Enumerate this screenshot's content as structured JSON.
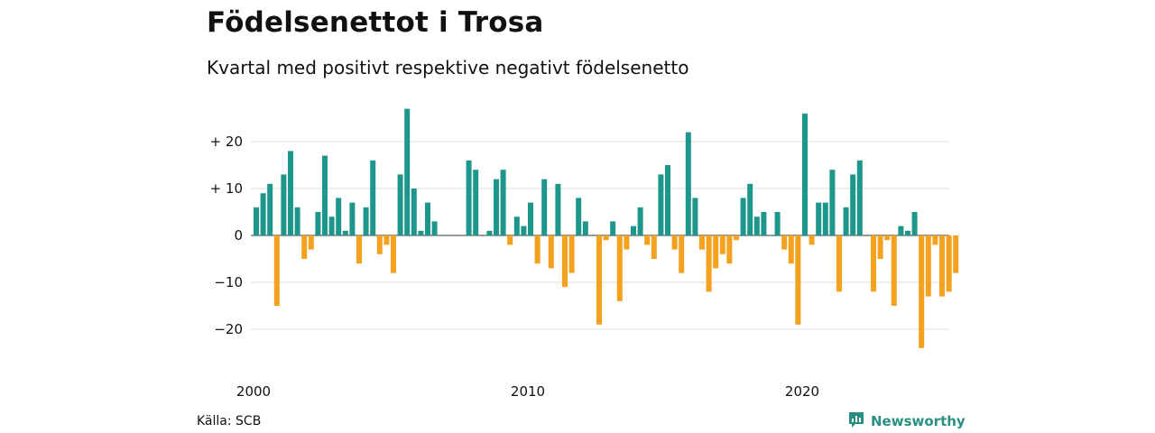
{
  "header": {
    "title": "Födelsenettot i Trosa",
    "subtitle": "Kvartal med positivt respektive negativt födelsenetto"
  },
  "footer": {
    "source": "Källa: SCB",
    "brand": "Newsworthy",
    "brand_icon": "newsworthy-logo-icon"
  },
  "colors": {
    "positive": "#1f968b",
    "negative": "#f4a11d",
    "grid": "#dddddd",
    "baseline": "#333333",
    "brand": "#2a8f83"
  },
  "chart_data": {
    "type": "bar",
    "x_start_year": 2000,
    "x_ticks": [
      2000,
      2010,
      2020
    ],
    "x_tick_labels": [
      "2000",
      "2010",
      "2020"
    ],
    "y_ticks": [
      20,
      10,
      0,
      -10,
      -20
    ],
    "y_tick_labels": [
      "+ 20",
      "+ 10",
      "0",
      "−10",
      "−20"
    ],
    "ylim": [
      -27,
      27
    ],
    "grid": true,
    "xlabel": "",
    "ylabel": "",
    "values": [
      6,
      9,
      11,
      -15,
      13,
      18,
      6,
      -5,
      -3,
      5,
      17,
      4,
      8,
      1,
      7,
      -6,
      6,
      16,
      -4,
      -2,
      -8,
      13,
      27,
      10,
      1,
      7,
      3,
      0,
      0,
      0,
      0,
      16,
      14,
      0,
      1,
      12,
      14,
      -2,
      4,
      2,
      7,
      -6,
      12,
      -7,
      11,
      -11,
      -8,
      8,
      3,
      0,
      -19,
      -1,
      3,
      -14,
      -3,
      2,
      6,
      -2,
      -5,
      13,
      15,
      -3,
      -8,
      22,
      8,
      -3,
      -12,
      -7,
      -4,
      -6,
      -1,
      8,
      11,
      4,
      5,
      0,
      5,
      -3,
      -6,
      -19,
      26,
      -2,
      7,
      7,
      14,
      -12,
      6,
      13,
      16,
      0,
      -12,
      -5,
      -1,
      -15,
      2,
      1,
      5,
      -24,
      -13,
      -2,
      -13,
      -12,
      -8
    ]
  }
}
